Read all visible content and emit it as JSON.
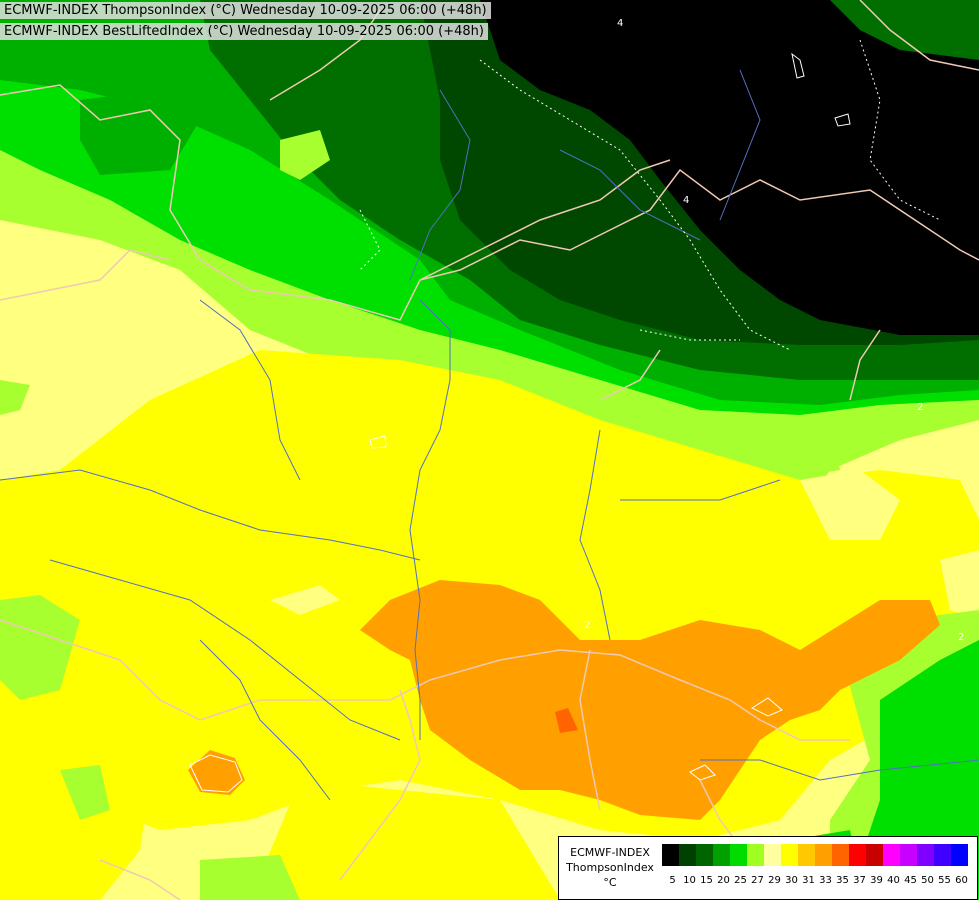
{
  "header": {
    "line1": "ECMWF-INDEX ThompsonIndex (°C) Wednesday 10-09-2025 06:00 (+48h)",
    "line2": "ECMWF-INDEX BestLiftedIndex (°C) Wednesday 10-09-2025 06:00 (+48h)"
  },
  "legend": {
    "line1": "ECMWF-INDEX",
    "line2": "ThompsonIndex",
    "line3": "°C",
    "colors": [
      "#000000",
      "#000000",
      "#000000",
      "#000000",
      "#004000",
      "#006400",
      "#00a000",
      "#00dc00",
      "#a0ff20",
      "#ffffa0",
      "#ffff00",
      "#ffc800",
      "#ffa000",
      "#ff6400",
      "#ff0000",
      "#c80000",
      "#ff00ff",
      "#c800ff",
      "#8000ff",
      "#4000ff",
      "#0000ff"
    ],
    "labels": [
      "5",
      "10",
      "15",
      "20",
      "25",
      "27",
      "29",
      "30",
      "31",
      "33",
      "35",
      "37",
      "39",
      "40",
      "45",
      "50",
      "55",
      "60"
    ]
  },
  "contour_labels": [
    "4",
    "4",
    "2",
    "2",
    "2"
  ],
  "colors": {
    "black": "#000000",
    "dark_green": "#004800",
    "green": "#006f00",
    "bright_green": "#00dc00",
    "lime": "#90ff30",
    "pale_yellow": "#ffff80",
    "yellow": "#ffff00",
    "orange": "#ffa000",
    "red_orange": "#ff6400",
    "borders": "#f0c8b4",
    "rivers": "#5070c0"
  }
}
